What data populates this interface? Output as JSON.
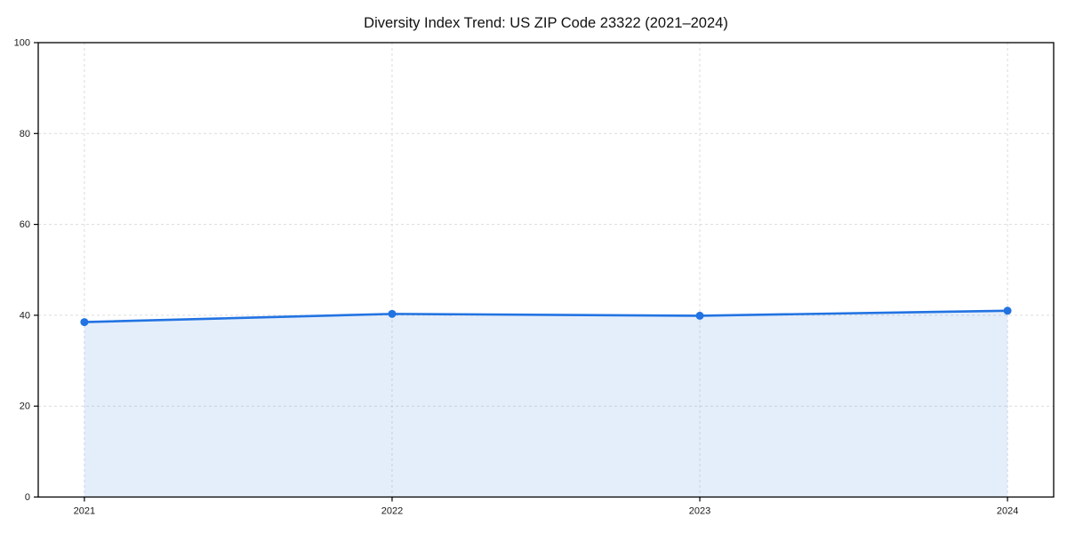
{
  "figure": {
    "background": "#ffffff"
  },
  "chart_data": {
    "type": "area",
    "title": "Diversity Index Trend: US ZIP Code 23322 (2021–2024)",
    "categories": [
      "2021",
      "2022",
      "2023",
      "2024"
    ],
    "series": [
      {
        "name": "Diversity Index",
        "values": [
          38.5,
          40.3,
          39.9,
          41.0
        ]
      }
    ],
    "xlabel": "",
    "ylabel": "",
    "ylim": [
      0,
      100
    ],
    "yticks": [
      0,
      20,
      40,
      60,
      80,
      100
    ],
    "grid": true,
    "grid_style": "dashed",
    "legend_position": "none",
    "markers": "circle",
    "colors": {
      "line": "#2273e2",
      "marker": "#2273e2",
      "fill": "rgba(34, 115, 226, 0.12)",
      "grid": "#dcdcdc",
      "axis": "#000000",
      "text": "#1a1a1a",
      "background": "#ffffff"
    }
  }
}
